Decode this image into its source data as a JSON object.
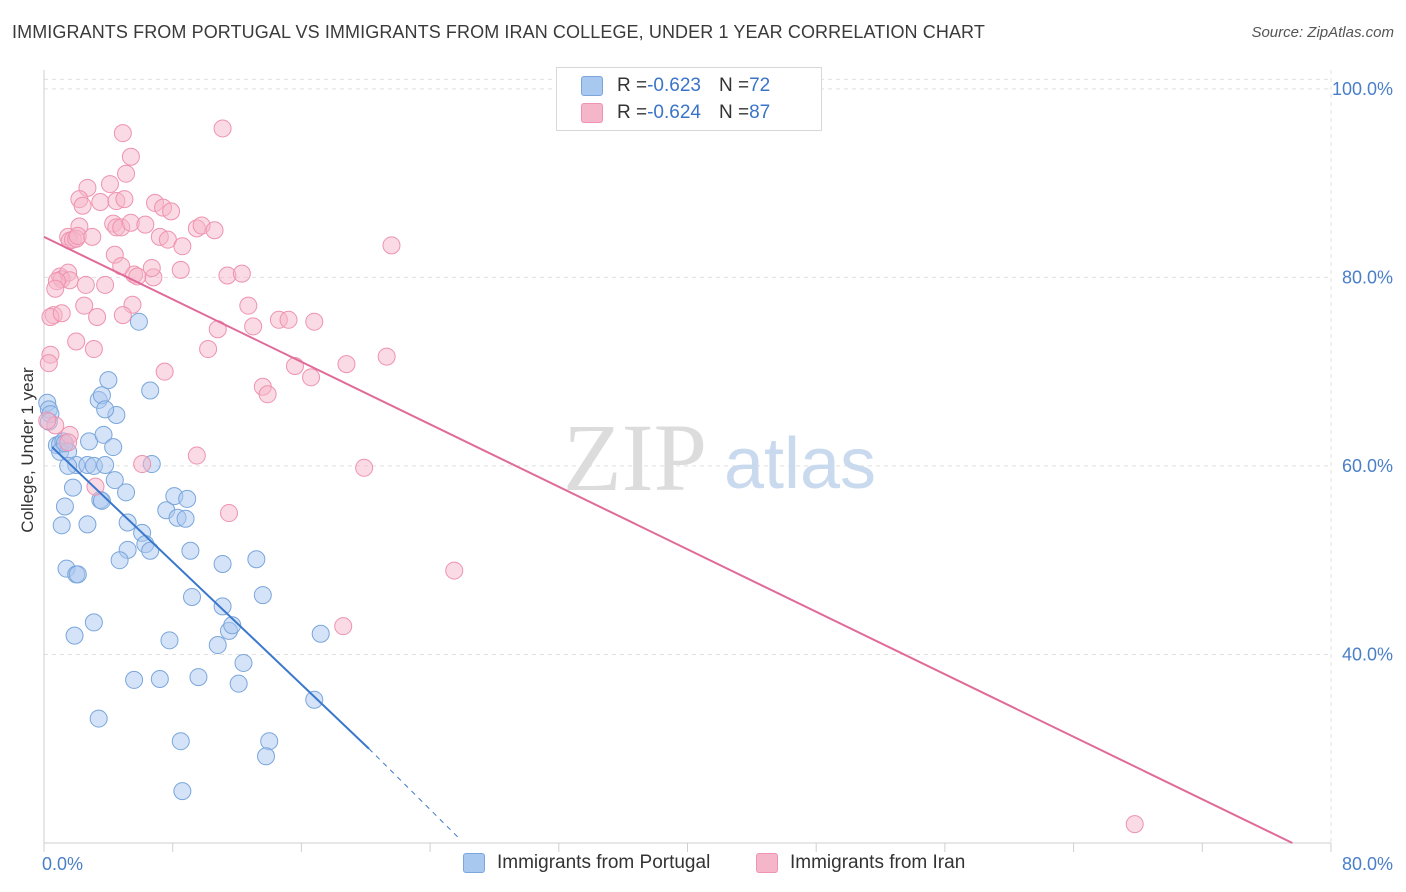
{
  "title": "IMMIGRANTS FROM PORTUGAL VS IMMIGRANTS FROM IRAN COLLEGE, UNDER 1 YEAR CORRELATION CHART",
  "source": "Source: ZipAtlas.com",
  "watermark": {
    "zip": "ZIP",
    "atlas": "atlas"
  },
  "colors": {
    "portugal_fill": "#a9c8ef",
    "portugal_stroke": "#7aa6dc",
    "portugal_line": "#3a78cc",
    "iran_fill": "#f6b6c9",
    "iran_stroke": "#ee93b0",
    "iran_line": "#e06a98",
    "tick": "#4a7fc8",
    "grid": "#e0e0e0"
  },
  "stats": {
    "portugal": {
      "r_label": "R = ",
      "r": "-0.623",
      "n_label": "N = ",
      "n": "72"
    },
    "iran": {
      "r_label": "R = ",
      "r": "-0.624",
      "n_label": "N = ",
      "n": "87"
    }
  },
  "chart_data": {
    "type": "scatter",
    "title": "IMMIGRANTS FROM PORTUGAL VS IMMIGRANTS FROM IRAN COLLEGE, UNDER 1 YEAR CORRELATION CHART",
    "xlabel": "",
    "ylabel": "College, Under 1 year",
    "xlim": [
      0,
      80
    ],
    "ylim": [
      20,
      102
    ],
    "x_ticks": [
      "0.0%",
      "80.0%"
    ],
    "y_ticks": [
      {
        "value": 40,
        "label": "40.0%"
      },
      {
        "value": 60,
        "label": "60.0%"
      },
      {
        "value": 80,
        "label": "80.0%"
      },
      {
        "value": 100,
        "label": "100.0%"
      }
    ],
    "grid": true,
    "legend_position": "bottom",
    "series": [
      {
        "name": "Immigrants from Portugal",
        "color": "#a9c8ef",
        "trend": {
          "x0": 0.5,
          "y0": 62.0,
          "x1": 20.2,
          "y1": 30.0,
          "dash_to_x": 25.8,
          "dash_to_y": 20.5
        },
        "points": [
          [
            0.2,
            66.7
          ],
          [
            0.3,
            66.0
          ],
          [
            0.4,
            65.5
          ],
          [
            0.3,
            64.7
          ],
          [
            0.8,
            62.2
          ],
          [
            1.0,
            62.3
          ],
          [
            1.2,
            62.6
          ],
          [
            1.0,
            61.5
          ],
          [
            1.5,
            61.5
          ],
          [
            2.8,
            62.6
          ],
          [
            3.7,
            63.3
          ],
          [
            4.3,
            62.0
          ],
          [
            2.0,
            60.1
          ],
          [
            2.7,
            60.1
          ],
          [
            3.1,
            60.0
          ],
          [
            3.8,
            60.1
          ],
          [
            4.4,
            58.5
          ],
          [
            5.1,
            57.2
          ],
          [
            6.7,
            60.2
          ],
          [
            3.4,
            67.0
          ],
          [
            3.6,
            67.5
          ],
          [
            4.0,
            69.1
          ],
          [
            4.5,
            65.4
          ],
          [
            3.8,
            66.0
          ],
          [
            5.9,
            75.3
          ],
          [
            6.6,
            68.0
          ],
          [
            1.5,
            60.0
          ],
          [
            1.3,
            55.7
          ],
          [
            1.1,
            53.7
          ],
          [
            1.8,
            57.7
          ],
          [
            2.7,
            53.8
          ],
          [
            3.5,
            56.4
          ],
          [
            3.6,
            56.3
          ],
          [
            5.2,
            54.0
          ],
          [
            6.1,
            52.9
          ],
          [
            6.3,
            51.7
          ],
          [
            6.6,
            51.0
          ],
          [
            5.2,
            51.1
          ],
          [
            4.7,
            50.0
          ],
          [
            7.6,
            55.3
          ],
          [
            8.1,
            56.8
          ],
          [
            8.3,
            54.5
          ],
          [
            8.8,
            54.4
          ],
          [
            8.9,
            56.5
          ],
          [
            9.1,
            51.0
          ],
          [
            1.4,
            49.1
          ],
          [
            2.0,
            48.5
          ],
          [
            2.1,
            48.5
          ],
          [
            11.1,
            49.6
          ],
          [
            13.2,
            50.1
          ],
          [
            9.2,
            46.1
          ],
          [
            11.1,
            45.1
          ],
          [
            13.6,
            46.3
          ],
          [
            1.9,
            42.0
          ],
          [
            3.1,
            43.4
          ],
          [
            7.8,
            41.5
          ],
          [
            10.8,
            41.0
          ],
          [
            11.5,
            42.5
          ],
          [
            11.7,
            43.1
          ],
          [
            12.4,
            39.1
          ],
          [
            17.2,
            42.2
          ],
          [
            5.6,
            37.3
          ],
          [
            7.2,
            37.4
          ],
          [
            9.6,
            37.6
          ],
          [
            12.1,
            36.9
          ],
          [
            3.4,
            33.2
          ],
          [
            8.5,
            30.8
          ],
          [
            14.0,
            30.8
          ],
          [
            13.8,
            29.2
          ],
          [
            16.8,
            35.2
          ],
          [
            8.6,
            25.5
          ],
          [
            1.3,
            62.4
          ]
        ]
      },
      {
        "name": "Immigrants from Iran",
        "color": "#f6b6c9",
        "trend": {
          "x0": 0,
          "y0": 84.3,
          "x1": 77.6,
          "y1": 20.0
        },
        "points": [
          [
            4.9,
            95.3
          ],
          [
            11.1,
            95.8
          ],
          [
            5.4,
            92.8
          ],
          [
            5.1,
            91.0
          ],
          [
            4.1,
            89.9
          ],
          [
            2.7,
            89.5
          ],
          [
            2.2,
            88.3
          ],
          [
            3.5,
            88.0
          ],
          [
            4.5,
            88.1
          ],
          [
            5.0,
            88.3
          ],
          [
            2.4,
            87.6
          ],
          [
            6.9,
            87.9
          ],
          [
            7.4,
            87.4
          ],
          [
            7.9,
            87.0
          ],
          [
            4.3,
            85.7
          ],
          [
            4.5,
            85.3
          ],
          [
            4.8,
            85.3
          ],
          [
            5.4,
            85.8
          ],
          [
            6.3,
            85.6
          ],
          [
            9.5,
            85.2
          ],
          [
            9.8,
            85.5
          ],
          [
            10.6,
            85.0
          ],
          [
            2.2,
            85.4
          ],
          [
            1.5,
            84.3
          ],
          [
            1.6,
            83.9
          ],
          [
            1.8,
            84.0
          ],
          [
            2.0,
            84.1
          ],
          [
            2.1,
            84.4
          ],
          [
            3.0,
            84.3
          ],
          [
            7.2,
            84.3
          ],
          [
            7.7,
            84.0
          ],
          [
            8.6,
            83.3
          ],
          [
            21.6,
            83.4
          ],
          [
            4.4,
            82.4
          ],
          [
            4.8,
            81.2
          ],
          [
            5.6,
            80.3
          ],
          [
            6.8,
            80.0
          ],
          [
            8.5,
            80.8
          ],
          [
            11.4,
            80.2
          ],
          [
            12.3,
            80.4
          ],
          [
            1.0,
            80.1
          ],
          [
            1.1,
            79.8
          ],
          [
            1.5,
            80.5
          ],
          [
            1.6,
            79.7
          ],
          [
            0.8,
            79.6
          ],
          [
            0.7,
            78.8
          ],
          [
            2.6,
            79.2
          ],
          [
            3.8,
            79.2
          ],
          [
            2.5,
            77.0
          ],
          [
            5.5,
            77.1
          ],
          [
            12.7,
            77.0
          ],
          [
            0.6,
            76.0
          ],
          [
            0.4,
            75.8
          ],
          [
            1.1,
            76.2
          ],
          [
            3.3,
            75.8
          ],
          [
            4.9,
            76.0
          ],
          [
            14.6,
            75.5
          ],
          [
            15.2,
            75.5
          ],
          [
            16.8,
            75.3
          ],
          [
            13.0,
            74.8
          ],
          [
            10.8,
            74.5
          ],
          [
            2.0,
            73.2
          ],
          [
            3.1,
            72.4
          ],
          [
            10.2,
            72.4
          ],
          [
            0.4,
            71.8
          ],
          [
            0.3,
            70.9
          ],
          [
            15.6,
            70.6
          ],
          [
            18.8,
            70.8
          ],
          [
            21.3,
            71.6
          ],
          [
            7.5,
            70.0
          ],
          [
            16.6,
            69.4
          ],
          [
            13.6,
            68.4
          ],
          [
            13.9,
            67.6
          ],
          [
            0.7,
            64.3
          ],
          [
            0.2,
            64.8
          ],
          [
            1.6,
            63.3
          ],
          [
            9.5,
            61.1
          ],
          [
            6.1,
            60.2
          ],
          [
            19.9,
            59.8
          ],
          [
            11.5,
            55.0
          ],
          [
            25.5,
            48.9
          ],
          [
            18.6,
            43.0
          ],
          [
            67.8,
            22.0
          ],
          [
            1.5,
            62.5
          ],
          [
            3.2,
            57.8
          ],
          [
            6.7,
            81.0
          ],
          [
            5.8,
            80.1
          ]
        ]
      }
    ]
  },
  "legend": {
    "portugal": "Immigrants from Portugal",
    "iran": "Immigrants from Iran"
  }
}
